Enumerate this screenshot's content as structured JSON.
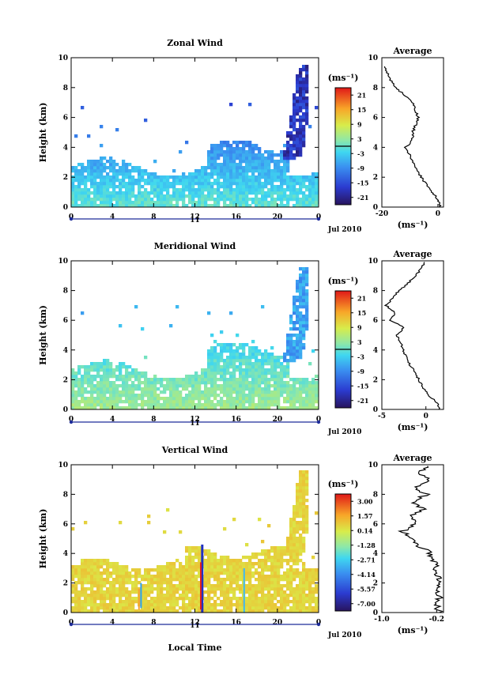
{
  "chart_data": [
    {
      "type": "heatmap",
      "title": "Zonal Wind",
      "ylabel": "Height (km)",
      "xticks": [
        "0",
        "4",
        "8",
        "12",
        "16",
        "20",
        "0"
      ],
      "yticks": [
        "0",
        "2",
        "4",
        "6",
        "8",
        "10"
      ],
      "xlim": [
        0,
        24
      ],
      "ylim": [
        0,
        10
      ],
      "date_label": "11",
      "month_label": "Jul 2010",
      "colorbar": {
        "unit": "(ms⁻¹)",
        "ticks": [
          "21",
          "15",
          "9",
          "3",
          "-3",
          "-9",
          "-15",
          "-21"
        ],
        "range": [
          -24,
          24
        ]
      },
      "average": {
        "title": "Average",
        "xlabel": "(ms⁻¹)",
        "xticks": [
          "-20",
          "0"
        ],
        "xlim": [
          -20,
          2
        ],
        "yticks": [
          "0",
          "2",
          "4",
          "6",
          "8",
          "10"
        ],
        "profile": [
          [
            0,
            1
          ],
          [
            0.3,
            0.5
          ],
          [
            0.6,
            -0.5
          ],
          [
            1.0,
            -2
          ],
          [
            1.5,
            -4
          ],
          [
            2.0,
            -6
          ],
          [
            2.5,
            -7.5
          ],
          [
            3.0,
            -9
          ],
          [
            3.5,
            -10
          ],
          [
            4.0,
            -11.5
          ],
          [
            4.5,
            -9
          ],
          [
            5.0,
            -9
          ],
          [
            5.5,
            -8
          ],
          [
            6.0,
            -7
          ],
          [
            6.5,
            -8
          ],
          [
            7.0,
            -9
          ],
          [
            7.5,
            -12
          ],
          [
            8.0,
            -15
          ],
          [
            8.5,
            -17
          ],
          [
            9.0,
            -18
          ],
          [
            9.5,
            -19
          ]
        ]
      }
    },
    {
      "type": "heatmap",
      "title": "Meridional Wind",
      "ylabel": "Height (km)",
      "xticks": [
        "0",
        "4",
        "8",
        "12",
        "16",
        "20",
        "0"
      ],
      "yticks": [
        "0",
        "2",
        "4",
        "6",
        "8",
        "10"
      ],
      "xlim": [
        0,
        24
      ],
      "ylim": [
        0,
        10
      ],
      "date_label": "11",
      "month_label": "Jul 2010",
      "colorbar": {
        "unit": "(ms⁻¹)",
        "ticks": [
          "21",
          "15",
          "9",
          "3",
          "-3",
          "-9",
          "-15",
          "-21"
        ],
        "range": [
          -24,
          24
        ]
      },
      "average": {
        "title": "Average",
        "xlabel": "(ms⁻¹)",
        "xticks": [
          "-5",
          "0"
        ],
        "xlim": [
          -5,
          2
        ],
        "yticks": [
          "0",
          "2",
          "4",
          "6",
          "8",
          "10"
        ],
        "profile": [
          [
            0,
            1.5
          ],
          [
            0.5,
            1.2
          ],
          [
            1.0,
            0.2
          ],
          [
            1.5,
            -0.3
          ],
          [
            2.0,
            -0.8
          ],
          [
            2.5,
            -1.2
          ],
          [
            3.0,
            -1.8
          ],
          [
            3.5,
            -2.2
          ],
          [
            4.0,
            -2.6
          ],
          [
            4.5,
            -2.8
          ],
          [
            5.0,
            -3.3
          ],
          [
            5.5,
            -2.5
          ],
          [
            6.0,
            -4
          ],
          [
            6.5,
            -3.5
          ],
          [
            7.0,
            -4.5
          ],
          [
            7.5,
            -3.8
          ],
          [
            8.0,
            -3
          ],
          [
            8.5,
            -2
          ],
          [
            9.0,
            -1.2
          ],
          [
            9.5,
            -0.5
          ],
          [
            10.0,
            0
          ]
        ]
      }
    },
    {
      "type": "heatmap",
      "title": "Vertical Wind",
      "ylabel": "Height (km)",
      "xlabel": "Local Time",
      "xticks": [
        "0",
        "4",
        "8",
        "12",
        "16",
        "20",
        "0"
      ],
      "yticks": [
        "0",
        "2",
        "4",
        "6",
        "8",
        "10"
      ],
      "xlim": [
        0,
        24
      ],
      "ylim": [
        0,
        10
      ],
      "date_label": "11",
      "month_label": "Jul 2010",
      "colorbar": {
        "unit": "(ms⁻¹)",
        "ticks": [
          "3.00",
          "1.57",
          "0.14",
          "-1.28",
          "-2.71",
          "-4.14",
          "-5.57",
          "-7.00"
        ],
        "range": [
          -7.7,
          3.7
        ]
      },
      "average": {
        "title": "Average",
        "xlabel": "(ms⁻¹)",
        "xticks": [
          "-1.0",
          "-0.2"
        ],
        "xlim": [
          -1.0,
          -0.1
        ],
        "yticks": [
          "0",
          "2",
          "4",
          "6",
          "8",
          "10"
        ],
        "profile": [
          [
            0,
            -0.15
          ],
          [
            0.5,
            -0.2
          ],
          [
            1.0,
            -0.15
          ],
          [
            1.5,
            -0.2
          ],
          [
            2.0,
            -0.15
          ],
          [
            2.5,
            -0.2
          ],
          [
            3.0,
            -0.2
          ],
          [
            3.5,
            -0.25
          ],
          [
            4.0,
            -0.3
          ],
          [
            4.5,
            -0.45
          ],
          [
            5.0,
            -0.55
          ],
          [
            5.5,
            -0.7
          ],
          [
            6.0,
            -0.5
          ],
          [
            6.5,
            -0.6
          ],
          [
            7.0,
            -0.4
          ],
          [
            7.5,
            -0.55
          ],
          [
            8.0,
            -0.35
          ],
          [
            8.5,
            -0.5
          ],
          [
            9.0,
            -0.3
          ],
          [
            9.5,
            -0.45
          ],
          [
            10.0,
            -0.3
          ]
        ]
      }
    }
  ]
}
